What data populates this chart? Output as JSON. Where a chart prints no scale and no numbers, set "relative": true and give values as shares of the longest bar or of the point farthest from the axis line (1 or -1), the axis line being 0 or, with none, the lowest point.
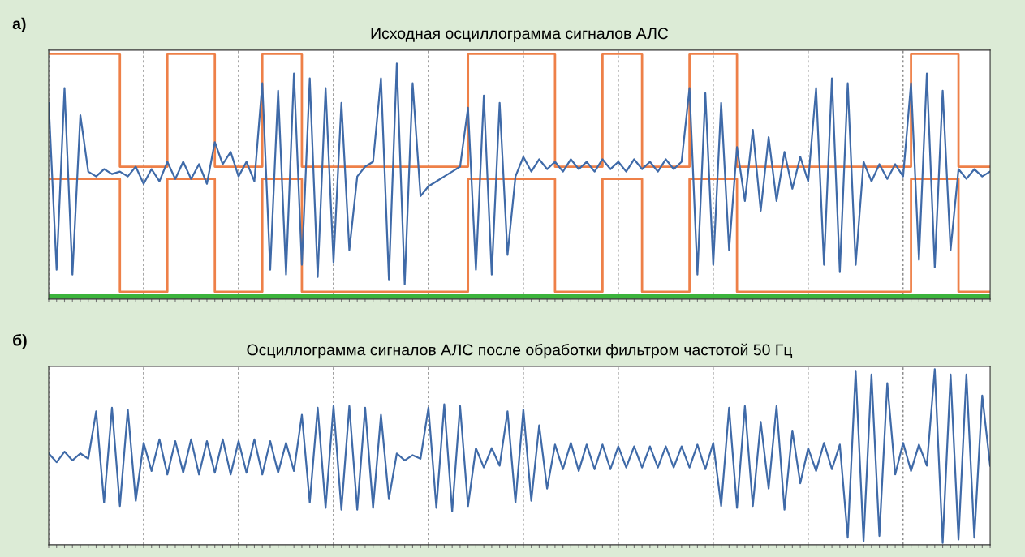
{
  "chart_data": [
    {
      "type": "line",
      "title": "Исходная осциллограмма сигналов АЛС",
      "annotations": [
        "а)"
      ],
      "relative": true,
      "grid": "x",
      "categories": [
        null,
        null,
        null,
        null,
        null,
        null,
        null,
        null,
        null,
        null,
        null,
        null,
        null,
        null,
        null,
        null,
        null,
        null,
        null,
        null,
        null,
        null,
        null,
        null,
        null,
        null,
        null,
        null,
        null,
        null,
        null,
        null,
        null,
        null,
        null,
        null,
        null,
        null,
        null,
        null,
        null,
        null,
        null,
        null,
        null,
        null,
        null,
        null,
        null,
        null,
        null,
        null,
        null,
        null,
        null,
        null,
        null,
        null,
        null,
        null,
        null,
        null,
        null,
        null,
        null,
        null,
        null,
        null,
        null,
        null,
        null,
        null,
        null,
        null,
        null,
        null,
        null,
        null,
        null,
        null,
        null,
        null,
        null,
        null,
        null,
        null,
        null,
        null,
        null,
        null,
        null,
        null,
        null,
        null,
        null,
        null,
        null,
        null,
        null,
        null,
        null,
        null,
        null,
        null,
        null,
        null,
        null,
        null,
        null,
        null,
        null,
        null,
        null,
        null,
        null,
        null,
        null,
        null,
        null,
        null
      ],
      "ref_lines": [
        {
          "axis": "y",
          "value": 0.01,
          "color": "#3cb43c"
        }
      ],
      "series": [
        {
          "type": "step",
          "color": "#ee8048",
          "values": [
            1,
            1,
            1,
            1,
            1,
            1,
            1,
            1,
            1,
            0.54,
            0.54,
            0.54,
            0.54,
            0.54,
            0.54,
            1,
            1,
            1,
            1,
            1,
            1,
            0.54,
            0.54,
            0.54,
            0.54,
            0.54,
            0.54,
            1,
            1,
            1,
            1,
            1,
            0.54,
            0.54,
            0.54,
            0.54,
            0.54,
            0.54,
            0.54,
            0.54,
            0.54,
            0.54,
            0.54,
            0.54,
            0.54,
            0.54,
            0.54,
            0.54,
            0.54,
            0.54,
            0.54,
            0.54,
            0.54,
            1,
            1,
            1,
            1,
            1,
            1,
            1,
            1,
            1,
            1,
            1,
            0.54,
            0.54,
            0.54,
            0.54,
            0.54,
            0.54,
            1,
            1,
            1,
            1,
            1,
            0.54,
            0.54,
            0.54,
            0.54,
            0.54,
            0.54,
            1,
            1,
            1,
            1,
            1,
            1,
            0.54,
            0.54,
            0.54,
            0.54,
            0.54,
            0.54,
            0.54,
            0.54,
            0.54,
            0.54,
            0.54,
            0.54,
            0.54,
            0.54,
            0.54,
            0.54,
            0.54,
            0.54,
            0.54,
            0.54,
            0.54,
            0.54,
            1,
            1,
            1,
            1,
            1,
            1,
            0.54,
            0.54,
            0.54,
            0.54,
            0.54
          ]
        },
        {
          "type": "step",
          "color": "#ee8048",
          "values": [
            0.49,
            0.49,
            0.49,
            0.49,
            0.49,
            0.49,
            0.49,
            0.49,
            0.49,
            0.03,
            0.03,
            0.03,
            0.03,
            0.03,
            0.03,
            0.49,
            0.49,
            0.49,
            0.49,
            0.49,
            0.49,
            0.03,
            0.03,
            0.03,
            0.03,
            0.03,
            0.03,
            0.49,
            0.49,
            0.49,
            0.49,
            0.49,
            0.03,
            0.03,
            0.03,
            0.03,
            0.03,
            0.03,
            0.03,
            0.03,
            0.03,
            0.03,
            0.03,
            0.03,
            0.03,
            0.03,
            0.03,
            0.03,
            0.03,
            0.03,
            0.03,
            0.03,
            0.03,
            0.49,
            0.49,
            0.49,
            0.49,
            0.49,
            0.49,
            0.49,
            0.49,
            0.49,
            0.49,
            0.49,
            0.03,
            0.03,
            0.03,
            0.03,
            0.03,
            0.03,
            0.49,
            0.49,
            0.49,
            0.49,
            0.49,
            0.03,
            0.03,
            0.03,
            0.03,
            0.03,
            0.03,
            0.49,
            0.49,
            0.49,
            0.49,
            0.49,
            0.49,
            0.03,
            0.03,
            0.03,
            0.03,
            0.03,
            0.03,
            0.03,
            0.03,
            0.03,
            0.03,
            0.03,
            0.03,
            0.03,
            0.03,
            0.03,
            0.03,
            0.03,
            0.03,
            0.03,
            0.03,
            0.03,
            0.03,
            0.49,
            0.49,
            0.49,
            0.49,
            0.49,
            0.49,
            0.03,
            0.03,
            0.03,
            0.03,
            0.03
          ]
        },
        {
          "color": "#3f6aa8",
          "values": [
            0.8,
            0.12,
            0.86,
            0.1,
            0.75,
            0.52,
            0.5,
            0.53,
            0.51,
            0.52,
            0.5,
            0.54,
            0.47,
            0.53,
            0.48,
            0.56,
            0.49,
            0.56,
            0.49,
            0.55,
            0.47,
            0.64,
            0.55,
            0.6,
            0.5,
            0.56,
            0.48,
            0.88,
            0.12,
            0.85,
            0.1,
            0.92,
            0.14,
            0.9,
            0.09,
            0.86,
            0.15,
            0.8,
            0.2,
            0.5,
            0.54,
            0.56,
            0.9,
            0.08,
            0.96,
            0.06,
            0.88,
            0.42,
            0.46,
            0.48,
            0.5,
            0.52,
            0.54,
            0.78,
            0.12,
            0.83,
            0.1,
            0.8,
            0.18,
            0.5,
            0.58,
            0.52,
            0.57,
            0.53,
            0.56,
            0.52,
            0.57,
            0.53,
            0.56,
            0.52,
            0.57,
            0.53,
            0.56,
            0.52,
            0.57,
            0.53,
            0.56,
            0.52,
            0.57,
            0.53,
            0.56,
            0.86,
            0.1,
            0.84,
            0.14,
            0.8,
            0.2,
            0.62,
            0.4,
            0.69,
            0.36,
            0.66,
            0.4,
            0.6,
            0.45,
            0.58,
            0.48,
            0.86,
            0.14,
            0.9,
            0.11,
            0.88,
            0.14,
            0.56,
            0.48,
            0.55,
            0.49,
            0.55,
            0.5,
            0.88,
            0.16,
            0.92,
            0.13,
            0.85,
            0.2,
            0.53,
            0.49,
            0.53,
            0.5,
            0.52
          ]
        }
      ]
    },
    {
      "type": "line",
      "title": "Осциллограмма сигналов АЛС после обработки фильтром частотой 50 Гц",
      "annotations": [
        "б)"
      ],
      "relative": true,
      "grid": "x",
      "categories": [
        null,
        null,
        null,
        null,
        null,
        null,
        null,
        null,
        null,
        null,
        null,
        null,
        null,
        null,
        null,
        null,
        null,
        null,
        null,
        null,
        null,
        null,
        null,
        null,
        null,
        null,
        null,
        null,
        null,
        null,
        null,
        null,
        null,
        null,
        null,
        null,
        null,
        null,
        null,
        null,
        null,
        null,
        null,
        null,
        null,
        null,
        null,
        null,
        null,
        null,
        null,
        null,
        null,
        null,
        null,
        null,
        null,
        null,
        null,
        null,
        null,
        null,
        null,
        null,
        null,
        null,
        null,
        null,
        null,
        null,
        null,
        null,
        null,
        null,
        null,
        null,
        null,
        null,
        null,
        null,
        null,
        null,
        null,
        null,
        null,
        null,
        null,
        null,
        null,
        null,
        null,
        null,
        null,
        null,
        null,
        null,
        null,
        null,
        null,
        null,
        null,
        null,
        null,
        null,
        null,
        null,
        null,
        null,
        null,
        null,
        null,
        null,
        null,
        null,
        null,
        null,
        null,
        null,
        null,
        null
      ],
      "series": [
        {
          "color": "#3f6aa8",
          "values": [
            0.52,
            0.47,
            0.53,
            0.48,
            0.52,
            0.49,
            0.76,
            0.24,
            0.78,
            0.22,
            0.77,
            0.25,
            0.58,
            0.42,
            0.6,
            0.4,
            0.59,
            0.41,
            0.6,
            0.4,
            0.59,
            0.41,
            0.6,
            0.4,
            0.59,
            0.41,
            0.6,
            0.4,
            0.59,
            0.41,
            0.58,
            0.42,
            0.74,
            0.24,
            0.78,
            0.21,
            0.79,
            0.2,
            0.79,
            0.2,
            0.78,
            0.21,
            0.74,
            0.26,
            0.52,
            0.48,
            0.51,
            0.49,
            0.78,
            0.21,
            0.8,
            0.19,
            0.79,
            0.22,
            0.55,
            0.44,
            0.55,
            0.45,
            0.76,
            0.24,
            0.77,
            0.25,
            0.68,
            0.32,
            0.57,
            0.43,
            0.58,
            0.42,
            0.57,
            0.43,
            0.57,
            0.43,
            0.56,
            0.44,
            0.56,
            0.44,
            0.56,
            0.44,
            0.56,
            0.44,
            0.56,
            0.44,
            0.57,
            0.43,
            0.58,
            0.22,
            0.78,
            0.21,
            0.79,
            0.22,
            0.7,
            0.32,
            0.79,
            0.2,
            0.65,
            0.35,
            0.55,
            0.42,
            0.58,
            0.43,
            0.57,
            0.04,
            0.99,
            0.02,
            0.97,
            0.05,
            0.92,
            0.4,
            0.58,
            0.42,
            0.57,
            0.45,
            1.0,
            0.01,
            0.97,
            0.03,
            0.97,
            0.04,
            0.85,
            0.45
          ]
        }
      ]
    }
  ]
}
